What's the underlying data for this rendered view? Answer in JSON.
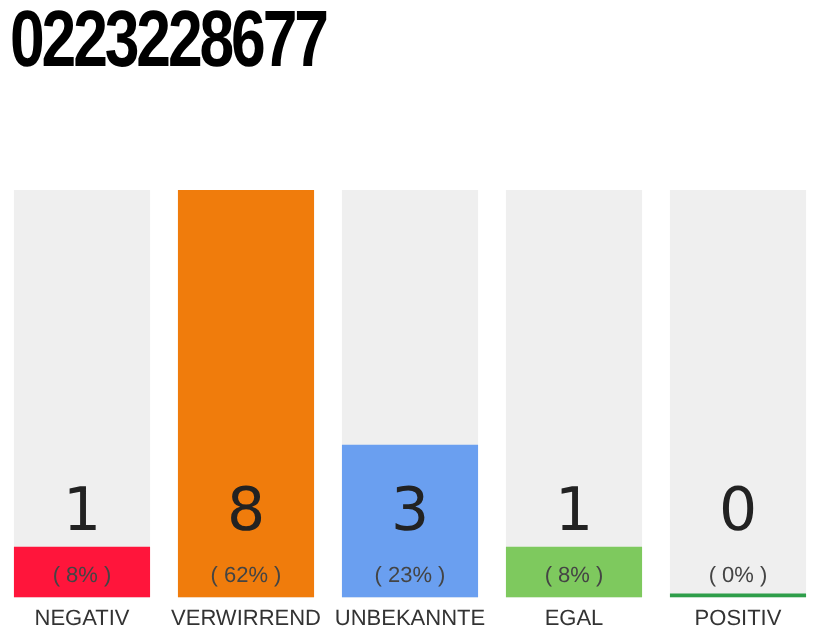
{
  "chart_data": {
    "type": "bar",
    "title": "0223228677",
    "categories": [
      "NEGATIV",
      "VERWIRREND",
      "UNBEKANNTE",
      "EGAL",
      "POSITIV"
    ],
    "values": [
      1,
      8,
      3,
      1,
      0
    ],
    "colors": [
      "#ff153b",
      "#f07c0c",
      "#6a9ff0",
      "#7ec95e",
      "#2e9e4a"
    ],
    "value_labels": [
      "1\n( 8% )",
      "8\n( 62% )",
      "3\n( 23% )",
      "1\n( 8% )",
      "0\n( 0% )"
    ],
    "tick_labels": "x",
    "grid": false,
    "legend": false
  }
}
